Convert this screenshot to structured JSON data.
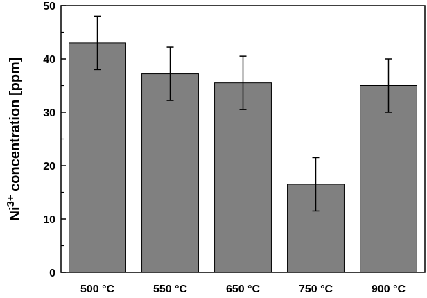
{
  "chart_data": {
    "type": "bar",
    "categories": [
      "500 °C",
      "550 °C",
      "650 °C",
      "750 °C",
      "900 °C"
    ],
    "values": [
      43,
      37.2,
      35.5,
      16.5,
      35
    ],
    "errors": [
      5,
      5,
      5,
      5,
      5
    ],
    "title": "",
    "xlabel": "",
    "ylabel": "Ni3+ concentration [ppm]",
    "ylabel_parts": {
      "base": "Ni",
      "sup": "3+",
      "rest": " concentration [ppm]"
    },
    "ylim": [
      0,
      50
    ],
    "yticks": [
      0,
      10,
      20,
      30,
      40,
      50
    ],
    "grid": false,
    "bar_color": "#808080",
    "bar_edge_color": "#000000"
  }
}
